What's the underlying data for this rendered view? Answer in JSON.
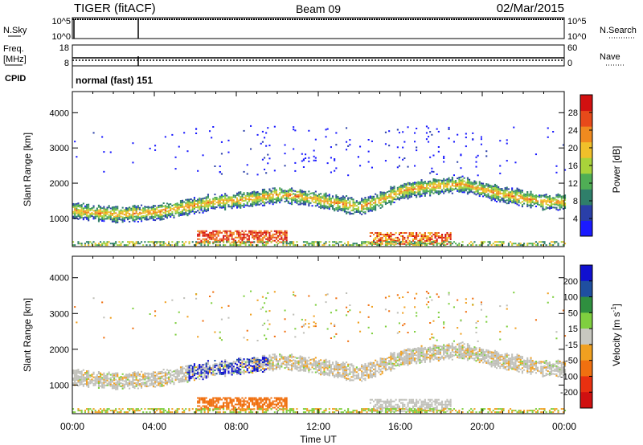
{
  "header": {
    "title": "TIGER (fitACF)",
    "beam": "Beam 09",
    "date": "02/Mar/2015"
  },
  "info_panels": {
    "nsky_label": "N.Sky",
    "nsky_ticks": [
      "10^5",
      "10^0"
    ],
    "nsearch_label": "N.Search",
    "nsearch_ticks": [
      "10^5",
      "10^0"
    ],
    "freq_label_line1": "Freq.",
    "freq_label_line2": "[MHz]",
    "freq_ticks": [
      "18",
      "8"
    ],
    "nave_label": "Nave",
    "nave_ticks": [
      "60",
      "0"
    ],
    "cpid_label": "CPID",
    "cpid_value": "normal (fast) 151"
  },
  "chart_data": [
    {
      "type": "heatmap",
      "name": "power",
      "ylabel": "Slant Range [km]",
      "yticks": [
        "1000",
        "2000",
        "3000",
        "4000"
      ],
      "ylim": [
        200,
        4600
      ],
      "xlim": [
        0,
        24
      ],
      "colorbar": {
        "label": "Power [dB]",
        "ticks": [
          "4",
          "8",
          "12",
          "16",
          "20",
          "24",
          "28"
        ],
        "range": [
          0,
          32
        ],
        "colors": [
          "#1a1aff",
          "#2a3fa8",
          "#2f7f6a",
          "#4fae55",
          "#a9d33a",
          "#f0c02a",
          "#f08a1f",
          "#e84a1a",
          "#d21010"
        ]
      }
    },
    {
      "type": "heatmap",
      "name": "velocity",
      "ylabel": "Slant Range [km]",
      "yticks": [
        "1000",
        "2000",
        "3000",
        "4000"
      ],
      "ylim": [
        200,
        4600
      ],
      "xlim": [
        0,
        24
      ],
      "colorbar": {
        "label": "Velocity [m s-1]",
        "label_main": "Velocity [m s",
        "label_sup": "-1",
        "label_end": "]",
        "ticks": [
          "200",
          "100",
          "50",
          "15",
          "-15",
          "-50",
          "-100",
          "-200"
        ],
        "colors": [
          "#1010d0",
          "#1f4fa0",
          "#2f8f3f",
          "#7fcf3f",
          "#c8c8c0",
          "#f0a020",
          "#f07010",
          "#e83010",
          "#d01010"
        ]
      }
    }
  ],
  "x_axis": {
    "label": "Time UT",
    "ticks": [
      "00:00",
      "04:00",
      "08:00",
      "12:00",
      "16:00",
      "20:00",
      "00:00"
    ]
  },
  "colors": {
    "axis": "#000000",
    "background": "#ffffff",
    "ground_scatter": "#bfbfb8"
  }
}
